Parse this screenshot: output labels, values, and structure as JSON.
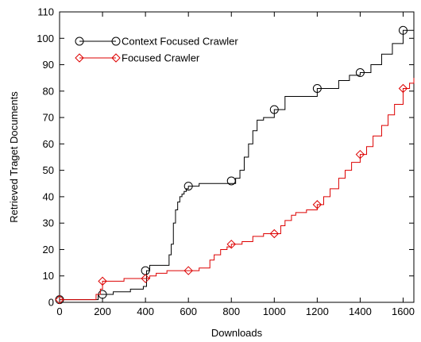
{
  "chart_data": {
    "type": "line",
    "title": "",
    "xlabel": "Downloads",
    "ylabel": "Retrieved Traget Documents",
    "xlim": [
      0,
      1650
    ],
    "ylim": [
      0,
      110
    ],
    "xticks": [
      0,
      200,
      400,
      600,
      800,
      1000,
      1200,
      1400,
      1600
    ],
    "yticks": [
      0,
      10,
      20,
      30,
      40,
      50,
      60,
      70,
      80,
      90,
      100,
      110
    ],
    "grid": false,
    "legend": "top-left",
    "step": true,
    "series": [
      {
        "name": "Context Focused Crawler",
        "color": "#000000",
        "marker": "circle",
        "marker_x": [
          0,
          200,
          400,
          600,
          800,
          1000,
          1200,
          1400,
          1600
        ],
        "marker_y": [
          1,
          3,
          12,
          44,
          46,
          73,
          81,
          87,
          103
        ],
        "x": [
          0,
          150,
          180,
          250,
          330,
          390,
          405,
          420,
          500,
          510,
          520,
          530,
          540,
          550,
          560,
          570,
          580,
          590,
          600,
          650,
          700,
          780,
          820,
          840,
          860,
          880,
          900,
          920,
          950,
          1000,
          1050,
          1100,
          1200,
          1300,
          1350,
          1400,
          1450,
          1500,
          1550,
          1600,
          1650
        ],
        "y": [
          1,
          1,
          3,
          4,
          5,
          6,
          12,
          14,
          14,
          18,
          22,
          30,
          35,
          38,
          40,
          41,
          42,
          43,
          44,
          45,
          45,
          45,
          47,
          50,
          55,
          60,
          65,
          69,
          70,
          73,
          78,
          78,
          81,
          84,
          86,
          87,
          90,
          94,
          98,
          103,
          105
        ]
      },
      {
        "name": "Focused Crawler",
        "color": "#dd0000",
        "marker": "diamond",
        "marker_x": [
          0,
          200,
          400,
          600,
          800,
          1000,
          1200,
          1400,
          1600
        ],
        "marker_y": [
          1,
          8,
          9,
          12,
          22,
          26,
          37,
          56,
          81
        ],
        "x": [
          0,
          140,
          170,
          190,
          200,
          300,
          400,
          420,
          450,
          500,
          550,
          600,
          650,
          700,
          720,
          750,
          780,
          800,
          850,
          900,
          950,
          1000,
          1030,
          1050,
          1080,
          1100,
          1150,
          1200,
          1230,
          1260,
          1300,
          1330,
          1360,
          1400,
          1430,
          1460,
          1500,
          1530,
          1560,
          1600,
          1630,
          1650
        ],
        "y": [
          1,
          1,
          3,
          5,
          8,
          9,
          9,
          10,
          11,
          12,
          12,
          12,
          13,
          16,
          18,
          20,
          21,
          22,
          23,
          25,
          26,
          26,
          29,
          31,
          33,
          34,
          35,
          37,
          40,
          43,
          47,
          50,
          53,
          56,
          59,
          63,
          67,
          71,
          75,
          81,
          83,
          85
        ]
      }
    ]
  }
}
